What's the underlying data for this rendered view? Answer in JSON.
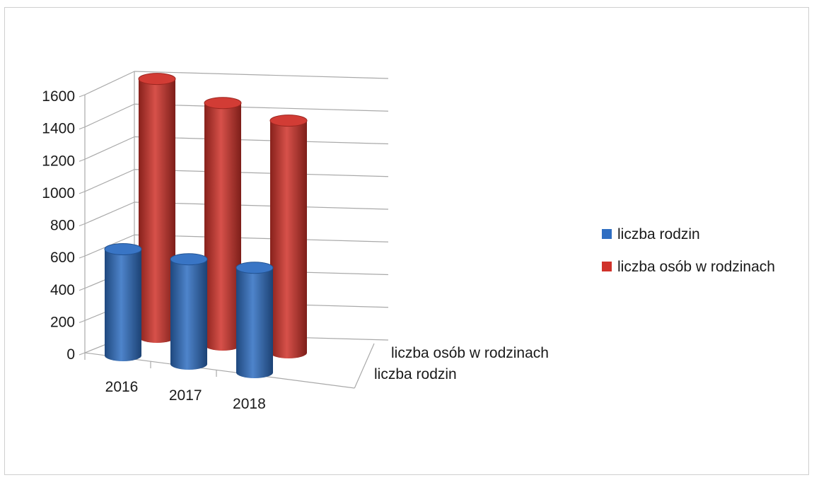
{
  "chart_data": {
    "type": "bar",
    "style": "3d-cylinder",
    "categories": [
      "2016",
      "2017",
      "2018"
    ],
    "series": [
      {
        "name": "liczba rodzin",
        "values": [
          660,
          650,
          650
        ],
        "color": "#2f6ec2"
      },
      {
        "name": "liczba osób w rodzinach",
        "values": [
          1580,
          1480,
          1420
        ],
        "color": "#d0322a"
      }
    ],
    "depth_labels": [
      "liczba osób w rodzinach",
      "liczba rodzin"
    ],
    "yticks": [
      "0",
      "200",
      "400",
      "600",
      "800",
      "1000",
      "1200",
      "1400",
      "1600"
    ],
    "ylim": [
      0,
      1600
    ],
    "grid": true,
    "legend_position": "right"
  }
}
